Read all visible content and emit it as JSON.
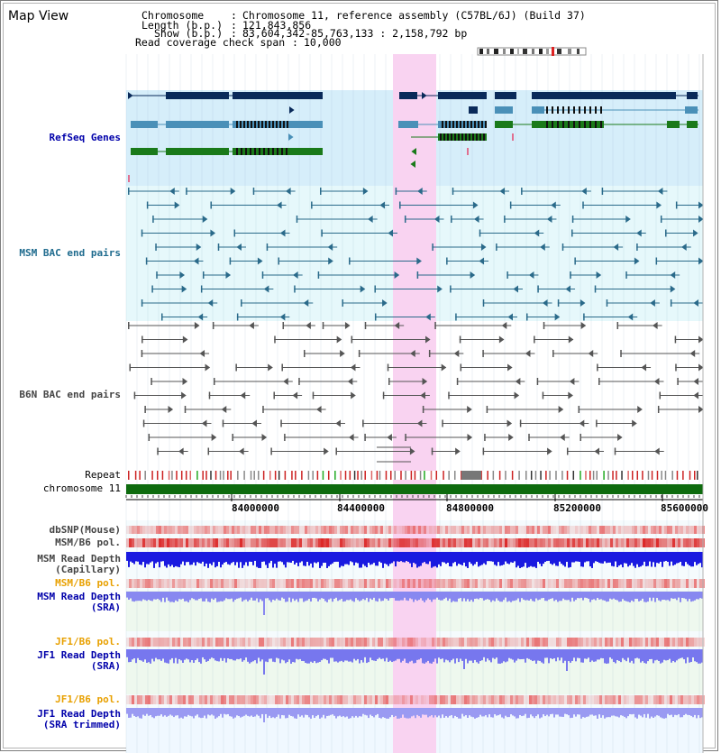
{
  "header": {
    "title": "Map View",
    "chromosome_label": "Chromosome",
    "chromosome_value": "Chromosome 11, reference assembly (C57BL/6J) (Build 37)",
    "length_label": "Length (b.p.)",
    "length_value": "121,843,856",
    "show_label": "Show (b.p.)",
    "show_value": "83,604,342-85,763,133 : 2,158,792 bp",
    "coverage_label": "Read coverage check span",
    "coverage_value": "10,000"
  },
  "tracks": {
    "refseq": "RefSeq Genes",
    "msm_bac": "MSM BAC end pairs",
    "b6n_bac": "B6N BAC end pairs",
    "repeat": "Repeat",
    "chromosome": "chromosome 11",
    "dbsnp": "dbSNP(Mouse)",
    "msm_b6_pol_cap": "MSM/B6 pol.",
    "msm_depth_cap_1": "MSM Read Depth",
    "msm_depth_cap_2": "(Capillary)",
    "msm_b6_pol_sra": "MSM/B6 pol.",
    "msm_depth_sra_1": "MSM Read Depth",
    "msm_depth_sra_2": "(SRA)",
    "jf1_b6_pol_1": "JF1/B6 pol.",
    "jf1_depth_sra_1": "JF1 Read Depth",
    "jf1_depth_sra_2": "(SRA)",
    "jf1_b6_pol_2": "JF1/B6 pol.",
    "jf1_depth_trim_1": "JF1 Read Depth",
    "jf1_depth_trim_2": "(SRA trimmed)"
  },
  "axis": {
    "ticks": [
      "84000000",
      "84400000",
      "84800000",
      "85200000",
      "85600000"
    ]
  },
  "colors": {
    "highlight": "#f9d3f1",
    "gene_dark": "#0a2a5a",
    "gene_mid": "#4a90b8",
    "gene_green": "#1a7a1a",
    "msm_bac": "#2a6a8a",
    "b6n_bac": "#555555",
    "chromosome": "#0e6b0e",
    "label_blue": "#0000aa",
    "label_orange": "#e8a000"
  }
}
